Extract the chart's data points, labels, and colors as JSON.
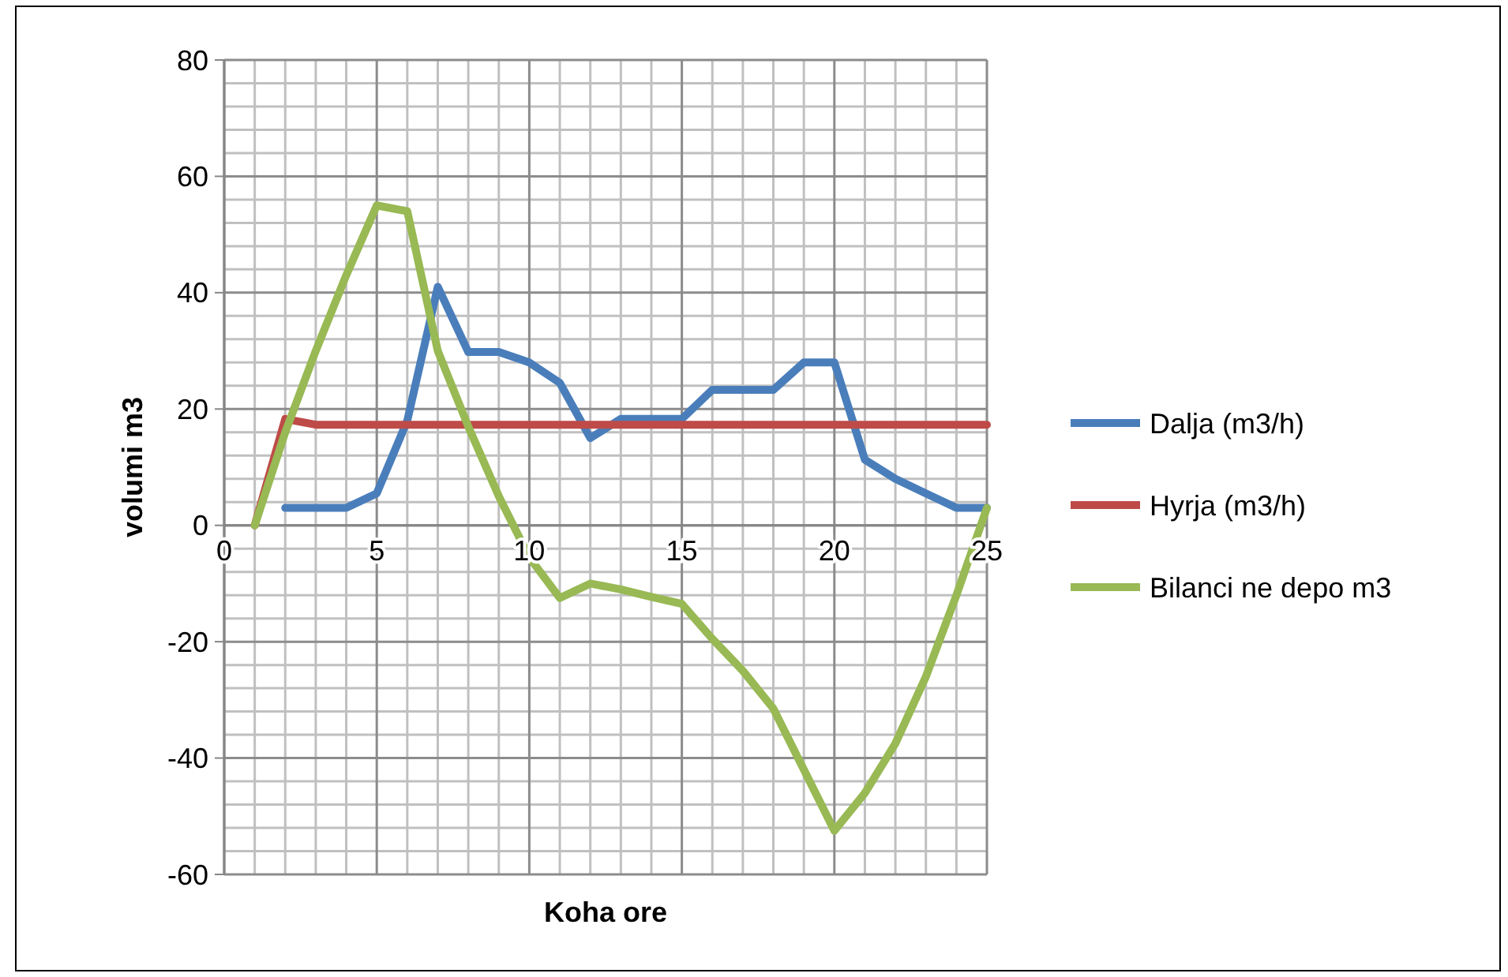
{
  "chart_data": {
    "type": "line",
    "xlabel": "Koha ore",
    "ylabel": "volumi m3",
    "xlim": [
      0,
      25
    ],
    "xticks": [
      0,
      5,
      10,
      15,
      20,
      25
    ],
    "ylim": [
      -60,
      80
    ],
    "yticks": [
      -60,
      -40,
      -20,
      0,
      20,
      40,
      60,
      80
    ],
    "grid": true,
    "legend": "right",
    "marker": "none",
    "line_style": "solid",
    "series": [
      {
        "name": "Dalja (m3/h)",
        "color": "#4a7ebb",
        "x": [
          2,
          3,
          4,
          5,
          6,
          7,
          8,
          9,
          10,
          11,
          12,
          13,
          14,
          15,
          16,
          17,
          18,
          19,
          20,
          21,
          22,
          23,
          24,
          25
        ],
        "values": [
          3,
          3,
          3,
          5.5,
          18,
          41,
          29.8,
          29.8,
          28,
          24.5,
          15,
          18.3,
          18.3,
          18.3,
          23.3,
          23.3,
          23.3,
          28,
          28,
          11.3,
          8,
          5.5,
          3,
          3
        ]
      },
      {
        "name": "Hyrja (m3/h)",
        "color": "#be4b48",
        "x": [
          1,
          2,
          3,
          4,
          5,
          6,
          7,
          8,
          9,
          10,
          11,
          12,
          13,
          14,
          15,
          16,
          17,
          18,
          19,
          20,
          21,
          22,
          23,
          24,
          25
        ],
        "values": [
          0,
          18.3,
          17.3,
          17.3,
          17.3,
          17.3,
          17.3,
          17.3,
          17.3,
          17.3,
          17.3,
          17.3,
          17.3,
          17.3,
          17.3,
          17.3,
          17.3,
          17.3,
          17.3,
          17.3,
          17.3,
          17.3,
          17.3,
          17.3,
          17.3
        ]
      },
      {
        "name": "Bilanci ne depo m3",
        "color": "#98b954",
        "x": [
          1,
          2,
          3,
          4,
          5,
          6,
          7,
          8,
          9,
          10,
          11,
          12,
          13,
          14,
          15,
          16,
          17,
          18,
          19,
          20,
          21,
          22,
          23,
          24,
          25
        ],
        "values": [
          0,
          16,
          30,
          43,
          55,
          54,
          30,
          17,
          5,
          -5.5,
          -12.5,
          -10,
          -11,
          -12.3,
          -13.5,
          -19.5,
          -25,
          -31.5,
          -42,
          -52.5,
          -46,
          -37.5,
          -26,
          -12,
          3
        ]
      }
    ]
  }
}
